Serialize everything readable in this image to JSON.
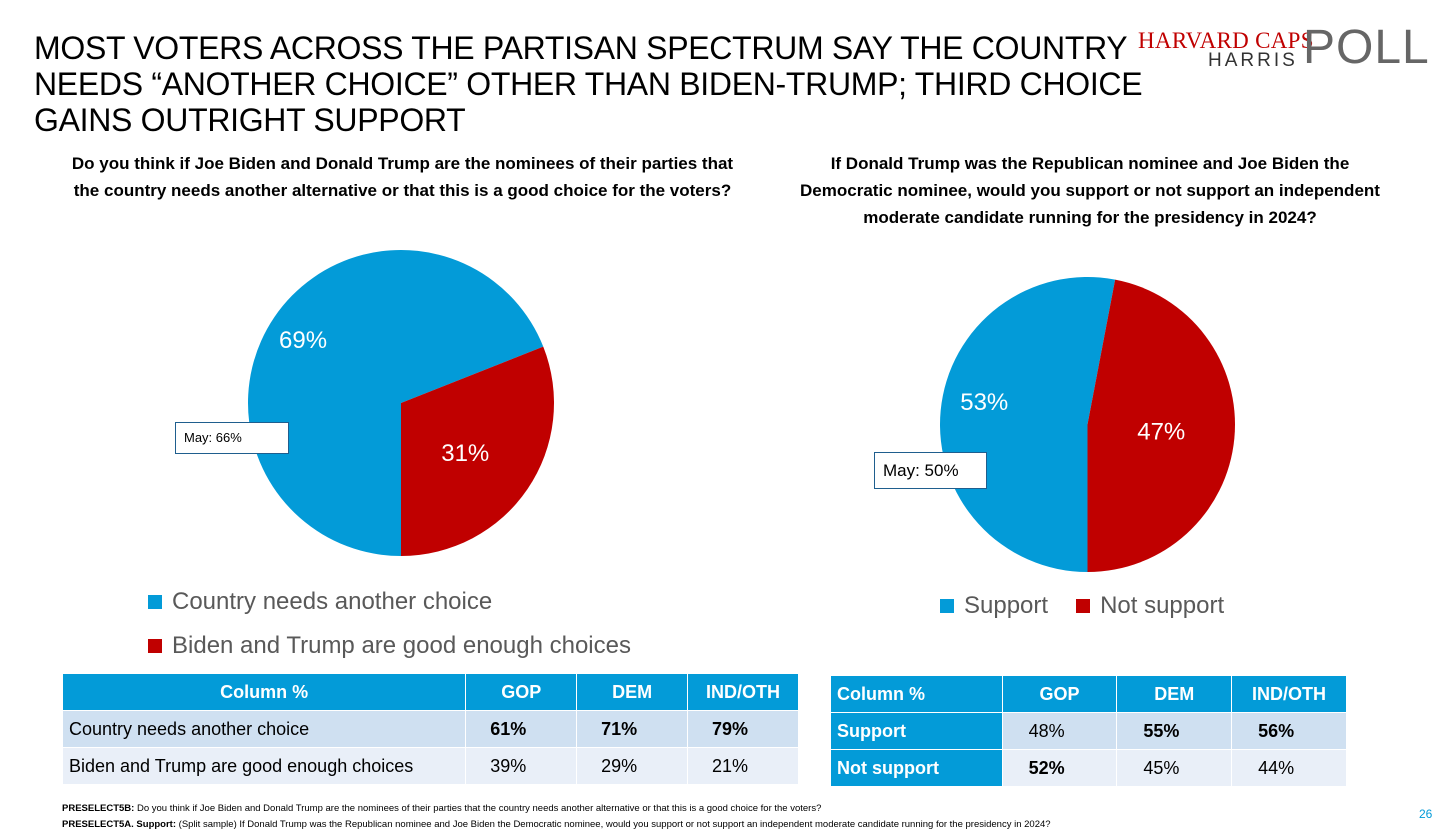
{
  "title": "MOST VOTERS ACROSS THE PARTISAN SPECTRUM SAY THE COUNTRY NEEDS “ANOTHER CHOICE” OTHER THAN BIDEN-TRUMP; THIRD CHOICE GAINS OUTRIGHT SUPPORT",
  "logo": {
    "line1": "HARVARD CAPS",
    "line2": "HARRIS",
    "poll": "POLL"
  },
  "colors": {
    "blue": "#039bd8",
    "red": "#c00000"
  },
  "chart_data": [
    {
      "type": "pie",
      "title": "Do you think if Joe Biden and Donald Trump are the nominees of their parties that the country needs another alternative or that this is a good choice for the voters?",
      "categories": [
        "Country needs another choice",
        "Biden and Trump are good enough choices"
      ],
      "values": [
        69,
        31
      ],
      "labels": [
        "69%",
        "31%"
      ],
      "colors": [
        "#039bd8",
        "#c00000"
      ],
      "annotation": "May: 66%",
      "legend_position": "bottom"
    },
    {
      "type": "pie",
      "title": "If Donald Trump was the Republican nominee and Joe Biden the Democratic nominee, would you support or not support an independent moderate candidate running for the presidency in 2024?",
      "categories": [
        "Support",
        "Not support"
      ],
      "values": [
        53,
        47
      ],
      "labels": [
        "53%",
        "47%"
      ],
      "colors": [
        "#039bd8",
        "#c00000"
      ],
      "annotation": "May: 50%",
      "legend_position": "bottom"
    }
  ],
  "tables": {
    "left": {
      "headers": [
        "Column %",
        "GOP",
        "DEM",
        "IND/OTH"
      ],
      "rows": [
        [
          "Country needs another choice",
          "61%",
          "71%",
          "79%"
        ],
        [
          "Biden and Trump are good enough choices",
          "39%",
          "29%",
          "21%"
        ]
      ]
    },
    "right": {
      "headers": [
        "Column %",
        "GOP",
        "DEM",
        "IND/OTH"
      ],
      "rows": [
        [
          "Support",
          "48%",
          "55%",
          "56%"
        ],
        [
          "Not support",
          "52%",
          "45%",
          "44%"
        ]
      ]
    }
  },
  "footnotes": [
    {
      "label": "PRESELECT5B:",
      "text": " Do you think if Joe Biden and Donald Trump are the nominees of their parties that the country needs another alternative or that this is a good choice for the voters?"
    },
    {
      "label": "PRESELECT5A. Support:",
      "text": " (Split sample) If Donald Trump was the Republican nominee and Joe Biden the Democratic nominee, would you support or not support an independent moderate candidate running for the presidency in 2024?"
    }
  ],
  "page_number": "26"
}
